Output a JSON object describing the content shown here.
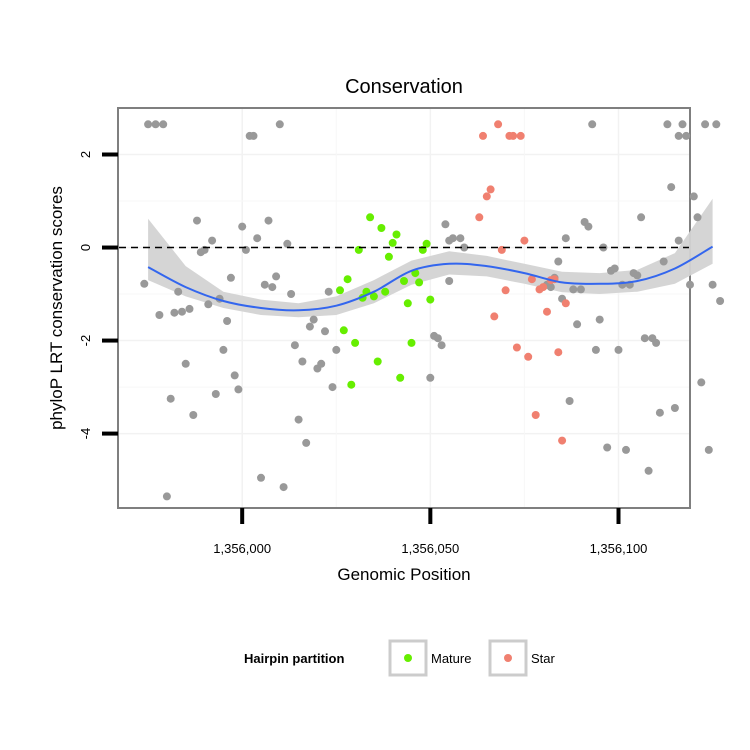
{
  "chart_data": {
    "type": "scatter",
    "title": "Conservation",
    "xlabel": "Genomic Position",
    "ylabel": "phyloP LRT conservation scores",
    "xlim": [
      1355967,
      1356119
    ],
    "ylim": [
      -5.6,
      3.0
    ],
    "x_ticks": [
      1356000,
      1356050,
      1356100
    ],
    "x_tick_labels": [
      "1,356,000",
      "1,356,050",
      "1,356,100"
    ],
    "y_ticks": [
      2,
      0,
      -2,
      -4
    ],
    "y_tick_labels": [
      "2",
      "0",
      "-2",
      "-4"
    ],
    "hline": 0,
    "grid": true,
    "legend": {
      "title": "Hairpin partition",
      "position": "bottom",
      "entries": [
        {
          "label": "Mature",
          "color": "#66ee00"
        },
        {
          "label": "Star",
          "color": "#f08070"
        }
      ]
    },
    "colors": {
      "other": "#999999",
      "Mature": "#66ee00",
      "Star": "#f08070",
      "smooth": "#3366ee",
      "band": "#d3d3d3"
    },
    "series": [
      {
        "group": "other",
        "points": [
          [
            1355975,
            2.65
          ],
          [
            1355977,
            2.65
          ],
          [
            1355979,
            2.65
          ],
          [
            1355974,
            -0.78
          ],
          [
            1355978,
            -1.45
          ],
          [
            1355980,
            -5.35
          ],
          [
            1355981,
            -3.25
          ],
          [
            1355982,
            -1.4
          ],
          [
            1355983,
            -0.95
          ],
          [
            1355984,
            -1.38
          ],
          [
            1355985,
            -2.5
          ],
          [
            1355986,
            -1.32
          ],
          [
            1355987,
            -3.6
          ],
          [
            1355988,
            0.58
          ],
          [
            1355989,
            -0.1
          ],
          [
            1355990,
            -0.05
          ],
          [
            1355991,
            -1.22
          ],
          [
            1355992,
            0.15
          ],
          [
            1355993,
            -3.15
          ],
          [
            1355994,
            -1.1
          ],
          [
            1355995,
            -2.2
          ],
          [
            1355996,
            -1.58
          ],
          [
            1355997,
            -0.65
          ],
          [
            1355998,
            -2.75
          ],
          [
            1355999,
            -3.05
          ],
          [
            1356000,
            0.45
          ],
          [
            1356001,
            -0.05
          ],
          [
            1356002,
            2.4
          ],
          [
            1356003,
            2.4
          ],
          [
            1356004,
            0.2
          ],
          [
            1356005,
            -4.95
          ],
          [
            1356006,
            -0.8
          ],
          [
            1356007,
            0.58
          ],
          [
            1356008,
            -0.85
          ],
          [
            1356009,
            -0.62
          ],
          [
            1356010,
            2.65
          ],
          [
            1356011,
            -5.15
          ],
          [
            1356012,
            0.08
          ],
          [
            1356013,
            -1.0
          ],
          [
            1356014,
            -2.1
          ],
          [
            1356015,
            -3.7
          ],
          [
            1356016,
            -2.45
          ],
          [
            1356017,
            -4.2
          ],
          [
            1356018,
            -1.7
          ],
          [
            1356019,
            -1.55
          ],
          [
            1356020,
            -2.6
          ],
          [
            1356021,
            -2.5
          ],
          [
            1356022,
            -1.8
          ],
          [
            1356023,
            -0.95
          ],
          [
            1356024,
            -3.0
          ],
          [
            1356025,
            -2.2
          ],
          [
            1356055,
            0.15
          ],
          [
            1356058,
            0.2
          ],
          [
            1356059,
            0.0
          ],
          [
            1356050,
            -2.8
          ],
          [
            1356051,
            -1.9
          ],
          [
            1356052,
            -1.95
          ],
          [
            1356053,
            -2.1
          ],
          [
            1356054,
            0.5
          ],
          [
            1356055,
            -0.72
          ],
          [
            1356056,
            0.2
          ],
          [
            1356081,
            -0.8
          ],
          [
            1356082,
            -0.85
          ],
          [
            1356083,
            -0.65
          ],
          [
            1356084,
            -0.3
          ],
          [
            1356085,
            -1.1
          ],
          [
            1356086,
            0.2
          ],
          [
            1356087,
            -3.3
          ],
          [
            1356088,
            -0.9
          ],
          [
            1356089,
            -1.65
          ],
          [
            1356090,
            -0.9
          ],
          [
            1356091,
            0.55
          ],
          [
            1356092,
            0.45
          ],
          [
            1356093,
            2.65
          ],
          [
            1356094,
            -2.2
          ],
          [
            1356095,
            -1.55
          ],
          [
            1356096,
            0.0
          ],
          [
            1356097,
            -4.3
          ],
          [
            1356098,
            -0.5
          ],
          [
            1356099,
            -0.45
          ],
          [
            1356100,
            -2.2
          ],
          [
            1356101,
            -0.8
          ],
          [
            1356102,
            -4.35
          ],
          [
            1356103,
            -0.8
          ],
          [
            1356104,
            -0.55
          ],
          [
            1356105,
            -0.6
          ],
          [
            1356106,
            0.65
          ],
          [
            1356107,
            -1.95
          ],
          [
            1356108,
            -4.8
          ],
          [
            1356109,
            -1.95
          ],
          [
            1356110,
            -2.05
          ],
          [
            1356111,
            -3.55
          ],
          [
            1356112,
            -0.3
          ],
          [
            1356113,
            2.65
          ],
          [
            1356114,
            1.3
          ],
          [
            1356115,
            -3.45
          ],
          [
            1356116,
            2.4
          ],
          [
            1356117,
            2.65
          ],
          [
            1356118,
            2.4
          ],
          [
            1356116,
            0.15
          ],
          [
            1356119,
            -0.8
          ],
          [
            1356120,
            1.1
          ],
          [
            1356121,
            0.65
          ],
          [
            1356122,
            -2.9
          ],
          [
            1356123,
            2.65
          ],
          [
            1356124,
            -4.35
          ],
          [
            1356125,
            -0.8
          ],
          [
            1356126,
            2.65
          ],
          [
            1356127,
            -1.15
          ]
        ]
      },
      {
        "group": "Mature",
        "name": "Mature",
        "points": [
          [
            1356026,
            -0.92
          ],
          [
            1356027,
            -1.78
          ],
          [
            1356028,
            -0.68
          ],
          [
            1356029,
            -2.95
          ],
          [
            1356030,
            -2.05
          ],
          [
            1356031,
            -0.05
          ],
          [
            1356032,
            -1.08
          ],
          [
            1356033,
            -0.95
          ],
          [
            1356034,
            0.65
          ],
          [
            1356035,
            -1.05
          ],
          [
            1356036,
            -2.45
          ],
          [
            1356037,
            0.42
          ],
          [
            1356038,
            -0.95
          ],
          [
            1356039,
            -0.2
          ],
          [
            1356040,
            0.1
          ],
          [
            1356041,
            0.28
          ],
          [
            1356042,
            -2.8
          ],
          [
            1356043,
            -0.72
          ],
          [
            1356044,
            -1.2
          ],
          [
            1356045,
            -2.05
          ],
          [
            1356046,
            -0.55
          ],
          [
            1356047,
            -0.75
          ],
          [
            1356048,
            -0.05
          ],
          [
            1356049,
            0.08
          ],
          [
            1356050,
            -1.12
          ]
        ]
      },
      {
        "group": "Star",
        "name": "Star",
        "points": [
          [
            1356063,
            0.65
          ],
          [
            1356064,
            2.4
          ],
          [
            1356065,
            1.1
          ],
          [
            1356066,
            1.25
          ],
          [
            1356067,
            -1.48
          ],
          [
            1356068,
            2.65
          ],
          [
            1356069,
            -0.05
          ],
          [
            1356070,
            -0.92
          ],
          [
            1356071,
            2.4
          ],
          [
            1356072,
            2.4
          ],
          [
            1356073,
            -2.15
          ],
          [
            1356074,
            2.4
          ],
          [
            1356075,
            0.15
          ],
          [
            1356076,
            -2.35
          ],
          [
            1356077,
            -0.68
          ],
          [
            1356078,
            -3.6
          ],
          [
            1356079,
            -0.9
          ],
          [
            1356080,
            -0.85
          ],
          [
            1356081,
            -1.38
          ],
          [
            1356082,
            -0.7
          ],
          [
            1356083,
            -0.68
          ],
          [
            1356084,
            -2.25
          ],
          [
            1356085,
            -4.15
          ],
          [
            1356086,
            -1.2
          ]
        ]
      }
    ],
    "smooth": {
      "x": [
        1355975,
        1355985,
        1355995,
        1356005,
        1356015,
        1356025,
        1356035,
        1356045,
        1356055,
        1356065,
        1356075,
        1356085,
        1356095,
        1356105,
        1356115,
        1356125
      ],
      "y": [
        -0.42,
        -0.85,
        -1.15,
        -1.3,
        -1.35,
        -1.25,
        -0.95,
        -0.5,
        -0.35,
        -0.4,
        -0.55,
        -0.75,
        -0.78,
        -0.72,
        -0.45,
        0.02
      ],
      "lower": [
        -0.7,
        -1.05,
        -1.3,
        -1.45,
        -1.5,
        -1.45,
        -1.2,
        -0.8,
        -0.58,
        -0.62,
        -0.78,
        -0.96,
        -1.0,
        -0.95,
        -0.78,
        -0.35
      ],
      "upper": [
        0.62,
        -0.4,
        -0.95,
        -1.12,
        -1.2,
        -1.05,
        -0.7,
        -0.28,
        -0.08,
        -0.18,
        -0.35,
        -0.52,
        -0.55,
        -0.48,
        -0.12,
        1.05
      ]
    }
  }
}
